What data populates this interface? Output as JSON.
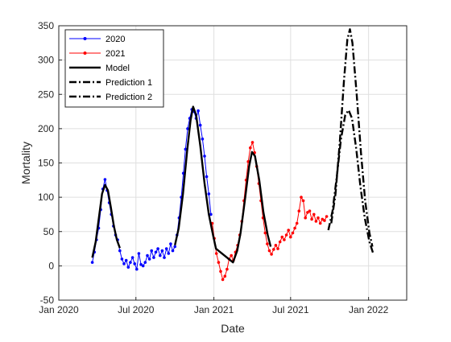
{
  "chart_data": {
    "type": "line",
    "title": "",
    "xlabel": "Date",
    "ylabel": "Mortality",
    "x_type": "date",
    "xlim": [
      "2020-01-01",
      "2022-04-01"
    ],
    "ylim": [
      -50,
      350
    ],
    "x_ticks": [
      {
        "date": "2020-01-01",
        "label": "Jan 2020"
      },
      {
        "date": "2020-07-01",
        "label": "Jul 2020"
      },
      {
        "date": "2021-01-01",
        "label": "Jan 2021"
      },
      {
        "date": "2021-07-01",
        "label": "Jul 2021"
      },
      {
        "date": "2022-01-01",
        "label": "Jan 2022"
      }
    ],
    "y_ticks": [
      {
        "value": -50,
        "label": "-50"
      },
      {
        "value": 0,
        "label": "0"
      },
      {
        "value": 50,
        "label": "50"
      },
      {
        "value": 100,
        "label": "100"
      },
      {
        "value": 150,
        "label": "150"
      },
      {
        "value": 200,
        "label": "200"
      },
      {
        "value": 250,
        "label": "250"
      },
      {
        "value": 300,
        "label": "300"
      },
      {
        "value": 350,
        "label": "350"
      }
    ],
    "grid": true,
    "legend_position": "top-left",
    "series": [
      {
        "name": "2020",
        "color": "#0000ff",
        "style": "line-marker",
        "points": [
          [
            "2020-03-20",
            5
          ],
          [
            "2020-03-25",
            20
          ],
          [
            "2020-03-30",
            38
          ],
          [
            "2020-04-04",
            55
          ],
          [
            "2020-04-09",
            82
          ],
          [
            "2020-04-14",
            112
          ],
          [
            "2020-04-19",
            126
          ],
          [
            "2020-04-24",
            110
          ],
          [
            "2020-04-29",
            92
          ],
          [
            "2020-05-04",
            75
          ],
          [
            "2020-05-09",
            58
          ],
          [
            "2020-05-14",
            45
          ],
          [
            "2020-05-19",
            38
          ],
          [
            "2020-05-24",
            22
          ],
          [
            "2020-05-29",
            10
          ],
          [
            "2020-06-03",
            3
          ],
          [
            "2020-06-08",
            8
          ],
          [
            "2020-06-13",
            -2
          ],
          [
            "2020-06-18",
            5
          ],
          [
            "2020-06-23",
            12
          ],
          [
            "2020-06-28",
            3
          ],
          [
            "2020-07-03",
            -5
          ],
          [
            "2020-07-08",
            18
          ],
          [
            "2020-07-13",
            2
          ],
          [
            "2020-07-18",
            0
          ],
          [
            "2020-07-23",
            5
          ],
          [
            "2020-07-28",
            15
          ],
          [
            "2020-08-02",
            10
          ],
          [
            "2020-08-07",
            22
          ],
          [
            "2020-08-12",
            12
          ],
          [
            "2020-08-17",
            20
          ],
          [
            "2020-08-22",
            25
          ],
          [
            "2020-08-27",
            15
          ],
          [
            "2020-09-01",
            22
          ],
          [
            "2020-09-06",
            12
          ],
          [
            "2020-09-11",
            25
          ],
          [
            "2020-09-16",
            18
          ],
          [
            "2020-09-21",
            32
          ],
          [
            "2020-09-26",
            22
          ],
          [
            "2020-10-01",
            28
          ],
          [
            "2020-10-06",
            45
          ],
          [
            "2020-10-11",
            70
          ],
          [
            "2020-10-16",
            100
          ],
          [
            "2020-10-21",
            135
          ],
          [
            "2020-10-26",
            170
          ],
          [
            "2020-10-31",
            200
          ],
          [
            "2020-11-05",
            215
          ],
          [
            "2020-11-10",
            228
          ],
          [
            "2020-11-15",
            225
          ],
          [
            "2020-11-20",
            215
          ],
          [
            "2020-11-25",
            226
          ],
          [
            "2020-11-30",
            205
          ],
          [
            "2020-12-05",
            185
          ],
          [
            "2020-12-10",
            160
          ],
          [
            "2020-12-15",
            130
          ],
          [
            "2020-12-20",
            105
          ],
          [
            "2020-12-25",
            75
          ]
        ]
      },
      {
        "name": "2021",
        "color": "#ff0000",
        "style": "line-marker",
        "points": [
          [
            "2020-12-28",
            62
          ],
          [
            "2021-01-02",
            40
          ],
          [
            "2021-01-07",
            18
          ],
          [
            "2021-01-12",
            5
          ],
          [
            "2021-01-17",
            -8
          ],
          [
            "2021-01-22",
            -20
          ],
          [
            "2021-01-27",
            -15
          ],
          [
            "2021-02-01",
            -5
          ],
          [
            "2021-02-06",
            10
          ],
          [
            "2021-02-11",
            15
          ],
          [
            "2021-02-16",
            8
          ],
          [
            "2021-02-21",
            20
          ],
          [
            "2021-02-26",
            30
          ],
          [
            "2021-03-03",
            45
          ],
          [
            "2021-03-08",
            65
          ],
          [
            "2021-03-13",
            95
          ],
          [
            "2021-03-18",
            125
          ],
          [
            "2021-03-23",
            152
          ],
          [
            "2021-03-28",
            172
          ],
          [
            "2021-04-02",
            180
          ],
          [
            "2021-04-07",
            165
          ],
          [
            "2021-04-12",
            145
          ],
          [
            "2021-04-17",
            120
          ],
          [
            "2021-04-22",
            95
          ],
          [
            "2021-04-27",
            70
          ],
          [
            "2021-05-02",
            48
          ],
          [
            "2021-05-07",
            32
          ],
          [
            "2021-05-12",
            22
          ],
          [
            "2021-05-17",
            17
          ],
          [
            "2021-05-22",
            24
          ],
          [
            "2021-05-27",
            30
          ],
          [
            "2021-06-01",
            25
          ],
          [
            "2021-06-06",
            35
          ],
          [
            "2021-06-11",
            42
          ],
          [
            "2021-06-16",
            38
          ],
          [
            "2021-06-21",
            45
          ],
          [
            "2021-06-26",
            52
          ],
          [
            "2021-07-01",
            42
          ],
          [
            "2021-07-06",
            48
          ],
          [
            "2021-07-11",
            55
          ],
          [
            "2021-07-16",
            62
          ],
          [
            "2021-07-21",
            80
          ],
          [
            "2021-07-26",
            100
          ],
          [
            "2021-07-31",
            95
          ],
          [
            "2021-08-05",
            70
          ],
          [
            "2021-08-10",
            78
          ],
          [
            "2021-08-15",
            80
          ],
          [
            "2021-08-20",
            68
          ],
          [
            "2021-08-25",
            75
          ],
          [
            "2021-08-30",
            65
          ],
          [
            "2021-09-04",
            70
          ],
          [
            "2021-09-09",
            62
          ],
          [
            "2021-09-14",
            68
          ],
          [
            "2021-09-19",
            66
          ],
          [
            "2021-09-24",
            72
          ]
        ]
      },
      {
        "name": "Model",
        "color": "#000000",
        "style": "solid",
        "points": [
          [
            "2020-03-20",
            12
          ],
          [
            "2020-03-28",
            35
          ],
          [
            "2020-04-05",
            72
          ],
          [
            "2020-04-12",
            105
          ],
          [
            "2020-04-19",
            118
          ],
          [
            "2020-04-26",
            110
          ],
          [
            "2020-05-03",
            85
          ],
          [
            "2020-05-10",
            58
          ],
          [
            "2020-05-17",
            38
          ],
          [
            "2020-05-24",
            26
          ],
          [
            "2020-10-01",
            30
          ],
          [
            "2020-10-10",
            55
          ],
          [
            "2020-10-20",
            105
          ],
          [
            "2020-10-30",
            168
          ],
          [
            "2020-11-07",
            212
          ],
          [
            "2020-11-13",
            232
          ],
          [
            "2020-11-20",
            220
          ],
          [
            "2020-11-30",
            175
          ],
          [
            "2020-12-10",
            120
          ],
          [
            "2020-12-20",
            75
          ],
          [
            "2020-12-30",
            45
          ],
          [
            "2021-01-06",
            25
          ],
          [
            "2021-02-15",
            5
          ],
          [
            "2021-02-25",
            22
          ],
          [
            "2021-03-05",
            48
          ],
          [
            "2021-03-15",
            95
          ],
          [
            "2021-03-25",
            145
          ],
          [
            "2021-04-01",
            166
          ],
          [
            "2021-04-08",
            160
          ],
          [
            "2021-04-18",
            125
          ],
          [
            "2021-04-28",
            78
          ],
          [
            "2021-05-08",
            45
          ],
          [
            "2021-05-15",
            28
          ]
        ]
      },
      {
        "name": "Prediction 1",
        "color": "#000000",
        "style": "dash-dot",
        "points": [
          [
            "2021-10-05",
            62
          ],
          [
            "2021-10-15",
            105
          ],
          [
            "2021-10-25",
            180
          ],
          [
            "2021-11-04",
            270
          ],
          [
            "2021-11-12",
            330
          ],
          [
            "2021-11-18",
            345
          ],
          [
            "2021-11-24",
            325
          ],
          [
            "2021-12-04",
            250
          ],
          [
            "2021-12-14",
            165
          ],
          [
            "2021-12-24",
            95
          ],
          [
            "2022-01-03",
            48
          ],
          [
            "2022-01-10",
            28
          ]
        ]
      },
      {
        "name": "Prediction 2",
        "color": "#000000",
        "style": "dash-dot",
        "points": [
          [
            "2021-09-28",
            52
          ],
          [
            "2021-10-08",
            80
          ],
          [
            "2021-10-18",
            130
          ],
          [
            "2021-10-28",
            185
          ],
          [
            "2021-11-07",
            220
          ],
          [
            "2021-11-15",
            227
          ],
          [
            "2021-11-23",
            215
          ],
          [
            "2021-12-03",
            170
          ],
          [
            "2021-12-13",
            115
          ],
          [
            "2021-12-23",
            70
          ],
          [
            "2022-01-03",
            35
          ],
          [
            "2022-01-12",
            18
          ]
        ]
      }
    ]
  }
}
